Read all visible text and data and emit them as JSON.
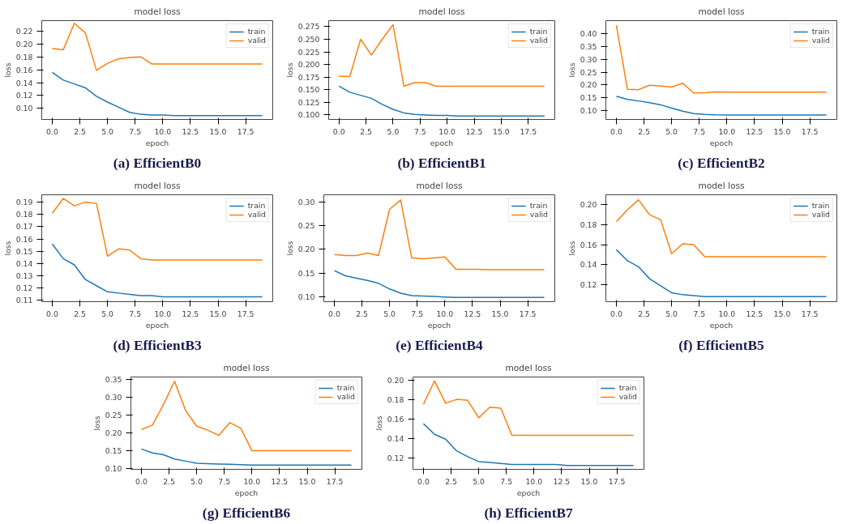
{
  "chart_data": [
    {
      "type": "line",
      "title": "model loss",
      "xlabel": "epoch",
      "ylabel": "loss",
      "annotations": [
        "(a) EfficientB0"
      ],
      "legend": "top right",
      "grid": false,
      "x": [
        0,
        1,
        2,
        3,
        4,
        5,
        6,
        7,
        8,
        9,
        10,
        11,
        12,
        13,
        14,
        15,
        16,
        17,
        18,
        19
      ],
      "xlim": [
        -0.95,
        19.95
      ],
      "xticks": [
        {
          "value": 0,
          "label": "0.0"
        },
        {
          "value": 2.5,
          "label": "2.5"
        },
        {
          "value": 5,
          "label": "5.0"
        },
        {
          "value": 7.5,
          "label": "7.5"
        },
        {
          "value": 10,
          "label": "10.0"
        },
        {
          "value": 12.5,
          "label": "12.5"
        },
        {
          "value": 15,
          "label": "15.0"
        },
        {
          "value": 17.5,
          "label": "17.5"
        }
      ],
      "ylim": [
        0.083,
        0.236
      ],
      "yticks": [
        {
          "value": 0.1,
          "label": "0.10"
        },
        {
          "value": 0.12,
          "label": "0.12"
        },
        {
          "value": 0.14,
          "label": "0.14"
        },
        {
          "value": 0.16,
          "label": "0.16"
        },
        {
          "value": 0.18,
          "label": "0.18"
        },
        {
          "value": 0.2,
          "label": "0.20"
        },
        {
          "value": 0.22,
          "label": "0.22"
        }
      ],
      "series": [
        {
          "name": "train",
          "color": "#1f77b4",
          "values": [
            0.156,
            0.144,
            0.138,
            0.132,
            0.119,
            0.11,
            0.102,
            0.094,
            0.091,
            0.09,
            0.09,
            0.089,
            0.089,
            0.089,
            0.089,
            0.089,
            0.089,
            0.089,
            0.089,
            0.089
          ]
        },
        {
          "name": "valid",
          "color": "#ff7f0e",
          "values": [
            0.193,
            0.191,
            0.232,
            0.217,
            0.159,
            0.17,
            0.177,
            0.179,
            0.18,
            0.169,
            0.169,
            0.169,
            0.169,
            0.169,
            0.169,
            0.169,
            0.169,
            0.169,
            0.169,
            0.169
          ]
        }
      ]
    },
    {
      "type": "line",
      "title": "model loss",
      "xlabel": "epoch",
      "ylabel": "loss",
      "annotations": [
        "(b) EfficientB1"
      ],
      "legend": "top right",
      "grid": false,
      "x": [
        0,
        1,
        2,
        3,
        4,
        5,
        6,
        7,
        8,
        9,
        10,
        11,
        12,
        13,
        14,
        15,
        16,
        17,
        18,
        19
      ],
      "xlim": [
        -0.95,
        19.95
      ],
      "xticks": [
        {
          "value": 0,
          "label": "0.0"
        },
        {
          "value": 2.5,
          "label": "2.5"
        },
        {
          "value": 5,
          "label": "5.0"
        },
        {
          "value": 7.5,
          "label": "7.5"
        },
        {
          "value": 10,
          "label": "10.0"
        },
        {
          "value": 12.5,
          "label": "12.5"
        },
        {
          "value": 15,
          "label": "15.0"
        },
        {
          "value": 17.5,
          "label": "17.5"
        }
      ],
      "ylim": [
        0.091,
        0.287
      ],
      "yticks": [
        {
          "value": 0.1,
          "label": "0.100"
        },
        {
          "value": 0.125,
          "label": "0.125"
        },
        {
          "value": 0.15,
          "label": "0.150"
        },
        {
          "value": 0.175,
          "label": "0.175"
        },
        {
          "value": 0.2,
          "label": "0.200"
        },
        {
          "value": 0.225,
          "label": "0.225"
        },
        {
          "value": 0.25,
          "label": "0.250"
        },
        {
          "value": 0.275,
          "label": "0.275"
        }
      ],
      "series": [
        {
          "name": "train",
          "color": "#1f77b4",
          "values": [
            0.157,
            0.145,
            0.139,
            0.133,
            0.121,
            0.111,
            0.104,
            0.101,
            0.1,
            0.099,
            0.099,
            0.098,
            0.098,
            0.098,
            0.098,
            0.098,
            0.098,
            0.098,
            0.098,
            0.098
          ]
        },
        {
          "name": "valid",
          "color": "#ff7f0e",
          "values": [
            0.177,
            0.176,
            0.25,
            0.219,
            0.25,
            0.279,
            0.157,
            0.164,
            0.164,
            0.157,
            0.157,
            0.157,
            0.157,
            0.157,
            0.157,
            0.157,
            0.157,
            0.157,
            0.157,
            0.157
          ]
        }
      ]
    },
    {
      "type": "line",
      "title": "model loss",
      "xlabel": "epoch",
      "ylabel": "loss",
      "annotations": [
        "(c) EfficientB2"
      ],
      "legend": "top right",
      "grid": false,
      "x": [
        0,
        1,
        2,
        3,
        4,
        5,
        6,
        7,
        8,
        9,
        10,
        11,
        12,
        13,
        14,
        15,
        16,
        17,
        18,
        19
      ],
      "xlim": [
        -0.95,
        19.95
      ],
      "xticks": [
        {
          "value": 0,
          "label": "0.0"
        },
        {
          "value": 2.5,
          "label": "2.5"
        },
        {
          "value": 5,
          "label": "5.0"
        },
        {
          "value": 7.5,
          "label": "7.5"
        },
        {
          "value": 10,
          "label": "10.0"
        },
        {
          "value": 12.5,
          "label": "12.5"
        },
        {
          "value": 15,
          "label": "15.0"
        },
        {
          "value": 17.5,
          "label": "17.5"
        }
      ],
      "ylim": [
        0.066,
        0.45
      ],
      "yticks": [
        {
          "value": 0.1,
          "label": "0.10"
        },
        {
          "value": 0.15,
          "label": "0.15"
        },
        {
          "value": 0.2,
          "label": "0.20"
        },
        {
          "value": 0.25,
          "label": "0.25"
        },
        {
          "value": 0.3,
          "label": "0.30"
        },
        {
          "value": 0.35,
          "label": "0.35"
        },
        {
          "value": 0.4,
          "label": "0.40"
        }
      ],
      "series": [
        {
          "name": "train",
          "color": "#1f77b4",
          "values": [
            0.156,
            0.144,
            0.138,
            0.131,
            0.123,
            0.11,
            0.098,
            0.089,
            0.086,
            0.084,
            0.083,
            0.083,
            0.083,
            0.083,
            0.083,
            0.083,
            0.083,
            0.083,
            0.083,
            0.083
          ]
        },
        {
          "name": "valid",
          "color": "#ff7f0e",
          "values": [
            0.432,
            0.183,
            0.182,
            0.199,
            0.196,
            0.192,
            0.207,
            0.169,
            0.17,
            0.173,
            0.172,
            0.172,
            0.172,
            0.172,
            0.172,
            0.172,
            0.172,
            0.172,
            0.172,
            0.172
          ]
        }
      ]
    },
    {
      "type": "line",
      "title": "model loss",
      "xlabel": "epoch",
      "ylabel": "loss",
      "annotations": [
        "(d) EfficientB3"
      ],
      "legend": "top right",
      "grid": false,
      "x": [
        0,
        1,
        2,
        3,
        4,
        5,
        6,
        7,
        8,
        9,
        10,
        11,
        12,
        13,
        14,
        15,
        16,
        17,
        18,
        19
      ],
      "xlim": [
        -0.95,
        19.95
      ],
      "xticks": [
        {
          "value": 0,
          "label": "0.0"
        },
        {
          "value": 2.5,
          "label": "2.5"
        },
        {
          "value": 5,
          "label": "5.0"
        },
        {
          "value": 7.5,
          "label": "7.5"
        },
        {
          "value": 10,
          "label": "10.0"
        },
        {
          "value": 12.5,
          "label": "12.5"
        },
        {
          "value": 15,
          "label": "15.0"
        },
        {
          "value": 17.5,
          "label": "17.5"
        }
      ],
      "ylim": [
        0.109,
        0.196
      ],
      "yticks": [
        {
          "value": 0.11,
          "label": "0.11"
        },
        {
          "value": 0.12,
          "label": "0.12"
        },
        {
          "value": 0.13,
          "label": "0.13"
        },
        {
          "value": 0.14,
          "label": "0.14"
        },
        {
          "value": 0.15,
          "label": "0.15"
        },
        {
          "value": 0.16,
          "label": "0.16"
        },
        {
          "value": 0.17,
          "label": "0.17"
        },
        {
          "value": 0.18,
          "label": "0.18"
        },
        {
          "value": 0.19,
          "label": "0.19"
        }
      ],
      "series": [
        {
          "name": "train",
          "color": "#1f77b4",
          "values": [
            0.156,
            0.144,
            0.139,
            0.127,
            0.122,
            0.117,
            0.116,
            0.115,
            0.114,
            0.114,
            0.113,
            0.113,
            0.113,
            0.113,
            0.113,
            0.113,
            0.113,
            0.113,
            0.113,
            0.113
          ]
        },
        {
          "name": "valid",
          "color": "#ff7f0e",
          "values": [
            0.181,
            0.193,
            0.187,
            0.19,
            0.189,
            0.146,
            0.152,
            0.151,
            0.144,
            0.143,
            0.143,
            0.143,
            0.143,
            0.143,
            0.143,
            0.143,
            0.143,
            0.143,
            0.143,
            0.143
          ]
        }
      ]
    },
    {
      "type": "line",
      "title": "model loss",
      "xlabel": "epoch",
      "ylabel": "loss",
      "annotations": [
        "(e) EfficientB4"
      ],
      "legend": "top right",
      "grid": false,
      "x": [
        0,
        1,
        2,
        3,
        4,
        5,
        6,
        7,
        8,
        9,
        10,
        11,
        12,
        13,
        14,
        15,
        16,
        17,
        18,
        19
      ],
      "xlim": [
        -0.95,
        19.95
      ],
      "xticks": [
        {
          "value": 0,
          "label": "0.0"
        },
        {
          "value": 2.5,
          "label": "2.5"
        },
        {
          "value": 5,
          "label": "5.0"
        },
        {
          "value": 7.5,
          "label": "7.5"
        },
        {
          "value": 10,
          "label": "10.0"
        },
        {
          "value": 12.5,
          "label": "12.5"
        },
        {
          "value": 15,
          "label": "15.0"
        },
        {
          "value": 17.5,
          "label": "17.5"
        }
      ],
      "ylim": [
        0.089,
        0.316
      ],
      "yticks": [
        {
          "value": 0.1,
          "label": "0.10"
        },
        {
          "value": 0.15,
          "label": "0.15"
        },
        {
          "value": 0.2,
          "label": "0.20"
        },
        {
          "value": 0.25,
          "label": "0.25"
        },
        {
          "value": 0.3,
          "label": "0.30"
        }
      ],
      "series": [
        {
          "name": "train",
          "color": "#1f77b4",
          "values": [
            0.155,
            0.144,
            0.139,
            0.134,
            0.128,
            0.116,
            0.107,
            0.102,
            0.101,
            0.1,
            0.099,
            0.098,
            0.098,
            0.098,
            0.098,
            0.098,
            0.098,
            0.098,
            0.098,
            0.098
          ]
        },
        {
          "name": "valid",
          "color": "#ff7f0e",
          "values": [
            0.189,
            0.187,
            0.187,
            0.192,
            0.187,
            0.285,
            0.305,
            0.182,
            0.18,
            0.182,
            0.184,
            0.158,
            0.158,
            0.158,
            0.157,
            0.157,
            0.157,
            0.157,
            0.157,
            0.157
          ]
        }
      ]
    },
    {
      "type": "line",
      "title": "model loss",
      "xlabel": "epoch",
      "ylabel": "loss",
      "annotations": [
        "(f) EfficientB5"
      ],
      "legend": "top right",
      "grid": false,
      "x": [
        0,
        1,
        2,
        3,
        4,
        5,
        6,
        7,
        8,
        9,
        10,
        11,
        12,
        13,
        14,
        15,
        16,
        17,
        18,
        19
      ],
      "xlim": [
        -0.95,
        19.95
      ],
      "xticks": [
        {
          "value": 0,
          "label": "0.0"
        },
        {
          "value": 2.5,
          "label": "2.5"
        },
        {
          "value": 5,
          "label": "5.0"
        },
        {
          "value": 7.5,
          "label": "7.5"
        },
        {
          "value": 10,
          "label": "10.0"
        },
        {
          "value": 12.5,
          "label": "12.5"
        },
        {
          "value": 15,
          "label": "15.0"
        },
        {
          "value": 17.5,
          "label": "17.5"
        }
      ],
      "ylim": [
        0.103,
        0.21
      ],
      "yticks": [
        {
          "value": 0.12,
          "label": "0.12"
        },
        {
          "value": 0.14,
          "label": "0.14"
        },
        {
          "value": 0.16,
          "label": "0.16"
        },
        {
          "value": 0.18,
          "label": "0.18"
        },
        {
          "value": 0.2,
          "label": "0.20"
        }
      ],
      "series": [
        {
          "name": "train",
          "color": "#1f77b4",
          "values": [
            0.155,
            0.144,
            0.138,
            0.126,
            0.119,
            0.112,
            0.11,
            0.109,
            0.108,
            0.108,
            0.108,
            0.108,
            0.108,
            0.108,
            0.108,
            0.108,
            0.108,
            0.108,
            0.108,
            0.108
          ]
        },
        {
          "name": "valid",
          "color": "#ff7f0e",
          "values": [
            0.183,
            0.195,
            0.205,
            0.19,
            0.185,
            0.151,
            0.161,
            0.16,
            0.148,
            0.148,
            0.148,
            0.148,
            0.148,
            0.148,
            0.148,
            0.148,
            0.148,
            0.148,
            0.148,
            0.148
          ]
        }
      ]
    },
    {
      "type": "line",
      "title": "model loss",
      "xlabel": "epoch",
      "ylabel": "loss",
      "annotations": [
        "(g) EfficientB6"
      ],
      "legend": "top right",
      "grid": false,
      "x": [
        0,
        1,
        2,
        3,
        4,
        5,
        6,
        7,
        8,
        9,
        10,
        11,
        12,
        13,
        14,
        15,
        16,
        17,
        18,
        19
      ],
      "xlim": [
        -0.95,
        19.95
      ],
      "xticks": [
        {
          "value": 0,
          "label": "0.0"
        },
        {
          "value": 2.5,
          "label": "2.5"
        },
        {
          "value": 5,
          "label": "5.0"
        },
        {
          "value": 7.5,
          "label": "7.5"
        },
        {
          "value": 10,
          "label": "10.0"
        },
        {
          "value": 12.5,
          "label": "12.5"
        },
        {
          "value": 15,
          "label": "15.0"
        },
        {
          "value": 17.5,
          "label": "17.5"
        }
      ],
      "ylim": [
        0.098,
        0.357
      ],
      "yticks": [
        {
          "value": 0.1,
          "label": "0.10"
        },
        {
          "value": 0.15,
          "label": "0.15"
        },
        {
          "value": 0.2,
          "label": "0.20"
        },
        {
          "value": 0.25,
          "label": "0.25"
        },
        {
          "value": 0.3,
          "label": "0.30"
        },
        {
          "value": 0.35,
          "label": "0.35"
        }
      ],
      "series": [
        {
          "name": "train",
          "color": "#1f77b4",
          "values": [
            0.155,
            0.144,
            0.139,
            0.127,
            0.121,
            0.115,
            0.114,
            0.113,
            0.112,
            0.111,
            0.11,
            0.11,
            0.11,
            0.11,
            0.11,
            0.11,
            0.11,
            0.11,
            0.11,
            0.11
          ]
        },
        {
          "name": "valid",
          "color": "#ff7f0e",
          "values": [
            0.21,
            0.222,
            0.28,
            0.345,
            0.263,
            0.219,
            0.208,
            0.193,
            0.229,
            0.213,
            0.15,
            0.15,
            0.15,
            0.15,
            0.15,
            0.15,
            0.15,
            0.15,
            0.15,
            0.15
          ]
        }
      ]
    },
    {
      "type": "line",
      "title": "model loss",
      "xlabel": "epoch",
      "ylabel": "loss",
      "annotations": [
        "(h) EfficientB7"
      ],
      "legend": "top right",
      "grid": false,
      "x": [
        0,
        1,
        2,
        3,
        4,
        5,
        6,
        7,
        8,
        9,
        10,
        11,
        12,
        13,
        14,
        15,
        16,
        17,
        18,
        19
      ],
      "xlim": [
        -0.95,
        19.95
      ],
      "xticks": [
        {
          "value": 0,
          "label": "0.0"
        },
        {
          "value": 2.5,
          "label": "2.5"
        },
        {
          "value": 5,
          "label": "5.0"
        },
        {
          "value": 7.5,
          "label": "7.5"
        },
        {
          "value": 10,
          "label": "10.0"
        },
        {
          "value": 12.5,
          "label": "12.5"
        },
        {
          "value": 15,
          "label": "15.0"
        },
        {
          "value": 17.5,
          "label": "17.5"
        }
      ],
      "ylim": [
        0.108,
        0.203
      ],
      "yticks": [
        {
          "value": 0.12,
          "label": "0.12"
        },
        {
          "value": 0.14,
          "label": "0.14"
        },
        {
          "value": 0.16,
          "label": "0.16"
        },
        {
          "value": 0.18,
          "label": "0.18"
        },
        {
          "value": 0.2,
          "label": "0.20"
        }
      ],
      "series": [
        {
          "name": "train",
          "color": "#1f77b4",
          "values": [
            0.155,
            0.144,
            0.139,
            0.127,
            0.121,
            0.116,
            0.115,
            0.114,
            0.113,
            0.113,
            0.113,
            0.113,
            0.113,
            0.112,
            0.112,
            0.112,
            0.112,
            0.112,
            0.112,
            0.112
          ]
        },
        {
          "name": "valid",
          "color": "#ff7f0e",
          "values": [
            0.175,
            0.199,
            0.176,
            0.18,
            0.179,
            0.161,
            0.172,
            0.171,
            0.143,
            0.143,
            0.143,
            0.143,
            0.143,
            0.143,
            0.143,
            0.143,
            0.143,
            0.143,
            0.143,
            0.143
          ]
        }
      ]
    }
  ]
}
